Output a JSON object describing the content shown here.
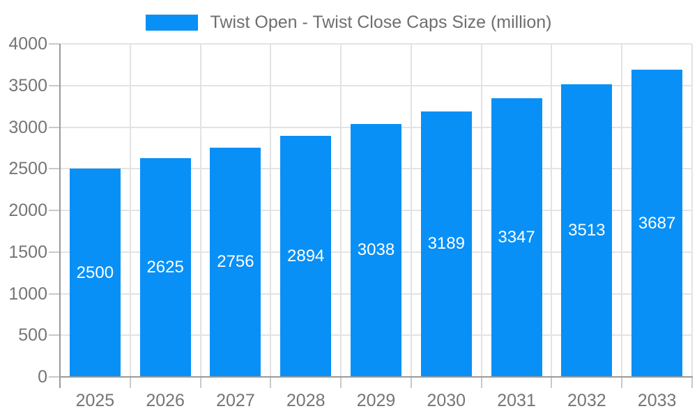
{
  "legend": {
    "label": "Twist Open - Twist Close Caps Size (million)"
  },
  "chart_data": {
    "type": "bar",
    "title": "Twist Open - Twist Close Caps Size (million)",
    "categories": [
      "2025",
      "2026",
      "2027",
      "2028",
      "2029",
      "2030",
      "2031",
      "2032",
      "2033"
    ],
    "values": [
      2500,
      2625,
      2756,
      2894,
      3038,
      3189,
      3347,
      3513,
      3687
    ],
    "series": [
      {
        "name": "Twist Open - Twist Close Caps Size (million)",
        "values": [
          2500,
          2625,
          2756,
          2894,
          3038,
          3189,
          3347,
          3513,
          3687
        ]
      }
    ],
    "xlabel": "",
    "ylabel": "",
    "ylim": [
      0,
      4000
    ],
    "ytick_step": 500,
    "yticks": [
      0,
      500,
      1000,
      1500,
      2000,
      2500,
      3000,
      3500,
      4000
    ],
    "grid": true,
    "legend_position": "top-center",
    "bar_labels": "inside-center-white"
  },
  "colors": {
    "bar": "#0890f6",
    "bar_label_text": "#ffffff",
    "axis_text": "#757575",
    "legend_text": "#6e6e6e",
    "gridline": "#e3e3e3",
    "axis_line": "#9a9a9a",
    "tick_mark": "#c9c9c9",
    "background": "#ffffff"
  }
}
